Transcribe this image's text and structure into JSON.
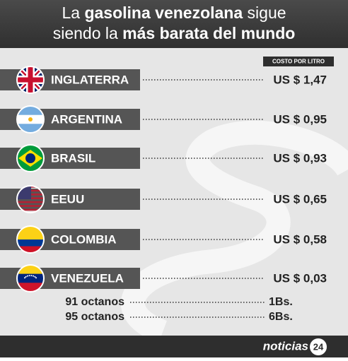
{
  "header": {
    "title_lines": [
      [
        {
          "text": "La ",
          "bold": false
        },
        {
          "text": "gasolina venezolana",
          "bold": true
        },
        {
          "text": " sigue",
          "bold": false
        }
      ],
      [
        {
          "text": "siendo la ",
          "bold": false
        },
        {
          "text": "más barata del mundo",
          "bold": true
        }
      ]
    ]
  },
  "column_header": "COSTO POR LITRO",
  "rows": [
    {
      "country": "INGLATERRA",
      "price": "US $ 1,47"
    },
    {
      "country": "ARGENTINA",
      "price": "US $ 0,95"
    },
    {
      "country": "BRASIL",
      "price": "US $ 0,93"
    },
    {
      "country": "EEUU",
      "price": "US $ 0,65"
    },
    {
      "country": "COLOMBIA",
      "price": "US $ 0,58"
    },
    {
      "country": "VENEZUELA",
      "price": "US $ 0,03"
    }
  ],
  "octanes": [
    {
      "label": "91 octanos",
      "price": "1Bs."
    },
    {
      "label": "95 octanos",
      "price": "6Bs."
    }
  ],
  "footer": {
    "logo": "noticias",
    "logo_number": "24"
  }
}
